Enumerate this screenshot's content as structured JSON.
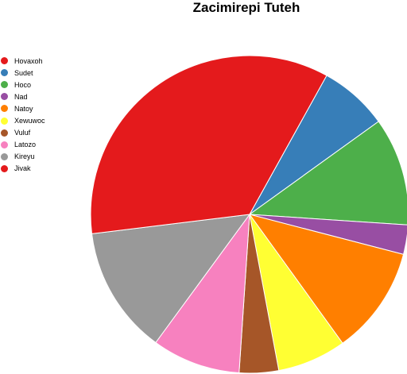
{
  "chart_data": {
    "type": "pie",
    "title": "Zacimirepi Tuteh",
    "legend_position": "left",
    "start_angle_deg": 61,
    "direction": "clockwise",
    "slices": [
      {
        "label": "Hovaxoh",
        "value": 0,
        "color": "#e41a1c"
      },
      {
        "label": "Sudet",
        "value": 7.0,
        "color": "#377eb8"
      },
      {
        "label": "Hoco",
        "value": 11.0,
        "color": "#4daf4a"
      },
      {
        "label": "Nad",
        "value": 3.0,
        "color": "#984ea3"
      },
      {
        "label": "Natoy",
        "value": 11.0,
        "color": "#ff7f00"
      },
      {
        "label": "Xewuwoc",
        "value": 7.0,
        "color": "#ffff33"
      },
      {
        "label": "Vuluf",
        "value": 4.0,
        "color": "#a65628"
      },
      {
        "label": "Latozo",
        "value": 9.0,
        "color": "#f781bf"
      },
      {
        "label": "Kireyu",
        "value": 13.0,
        "color": "#999999"
      },
      {
        "label": "Jivak",
        "value": 35.0,
        "color": "#e41a1c"
      }
    ]
  }
}
